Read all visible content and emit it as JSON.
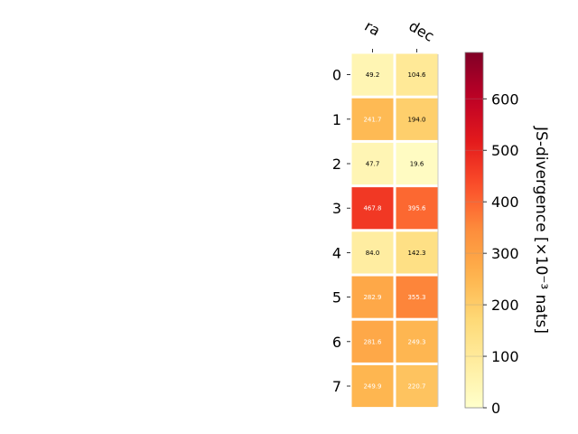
{
  "chart_data": {
    "type": "heatmap",
    "columns": [
      "ra",
      "dec"
    ],
    "rows": [
      "0",
      "1",
      "2",
      "3",
      "4",
      "5",
      "6",
      "7"
    ],
    "values": [
      [
        49.2,
        104.6
      ],
      [
        241.7,
        194.0
      ],
      [
        47.7,
        19.6
      ],
      [
        467.8,
        395.6
      ],
      [
        84.0,
        142.3
      ],
      [
        282.9,
        355.3
      ],
      [
        281.6,
        249.3
      ],
      [
        249.9,
        220.7
      ]
    ],
    "cell_labels": [
      [
        "49.2",
        "104.6"
      ],
      [
        "241.7",
        "194.0"
      ],
      [
        "47.7",
        "19.6"
      ],
      [
        "467.8",
        "395.6"
      ],
      [
        "84.0",
        "142.3"
      ],
      [
        "282.9",
        "355.3"
      ],
      [
        "281.6",
        "249.3"
      ],
      [
        "249.9",
        "220.7"
      ]
    ],
    "colormap": "YlOrRd",
    "colorbar": {
      "label": "JS-divergence [×10⁻³ nats]",
      "range": [
        0,
        690
      ],
      "ticks": [
        0,
        100,
        200,
        300,
        400,
        500,
        600
      ],
      "tick_labels": [
        "0",
        "100",
        "200",
        "300",
        "400",
        "500",
        "600"
      ]
    }
  }
}
